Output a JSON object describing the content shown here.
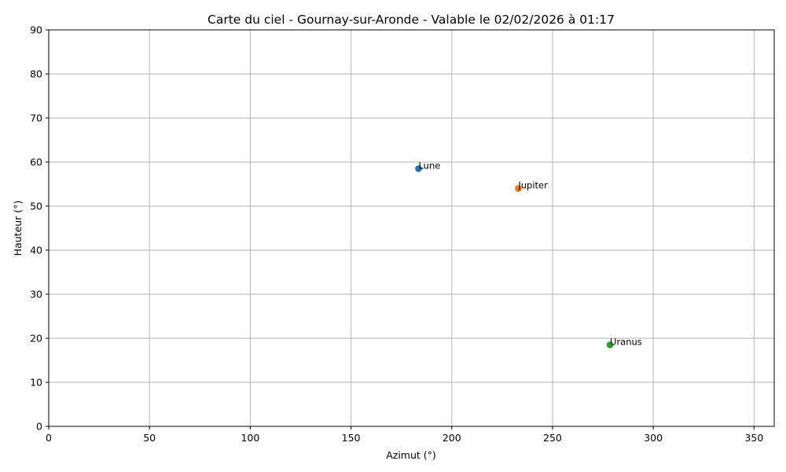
{
  "chart_data": {
    "type": "scatter",
    "title": "Carte du ciel - Gournay-sur-Aronde - Valable le 02/02/2026 à 01:17",
    "xlabel": "Azimut (°)",
    "ylabel": "Hauteur (°)",
    "xlim": [
      0,
      360
    ],
    "ylim": [
      0,
      90
    ],
    "xticks": [
      0,
      50,
      100,
      150,
      200,
      250,
      300,
      350
    ],
    "yticks": [
      0,
      10,
      20,
      30,
      40,
      50,
      60,
      70,
      80,
      90
    ],
    "grid": true,
    "points": [
      {
        "label": "Lune",
        "x": 183.5,
        "y": 58.5,
        "color": "#1f77b4"
      },
      {
        "label": "Jupiter",
        "x": 233,
        "y": 54,
        "color": "#ff7f0e"
      },
      {
        "label": "Uranus",
        "x": 278.5,
        "y": 18.5,
        "color": "#2ca02c"
      }
    ]
  }
}
